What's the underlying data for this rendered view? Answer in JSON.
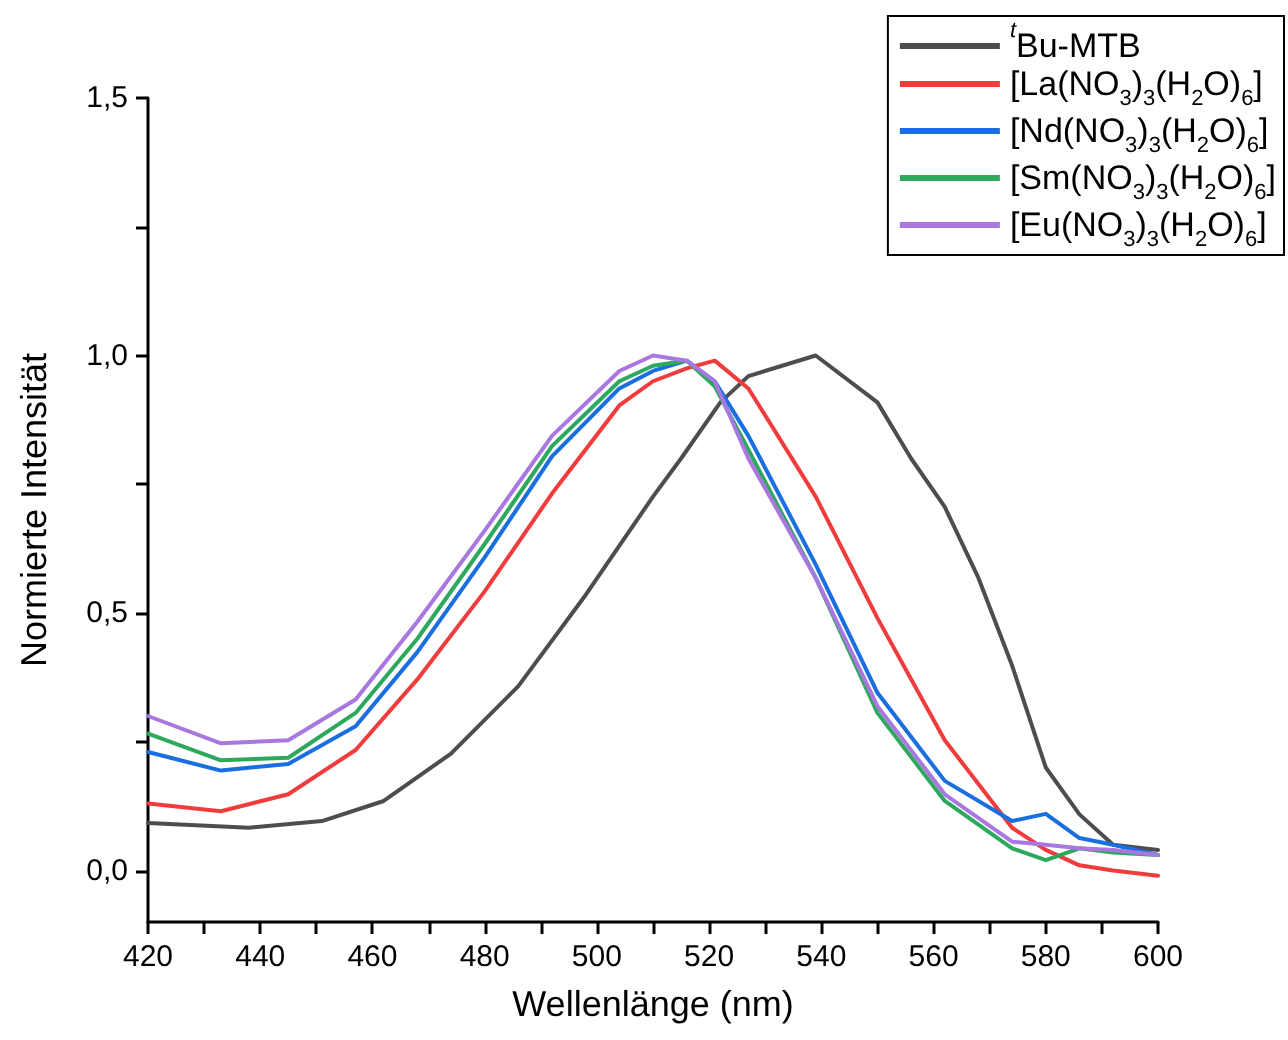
{
  "chart_data": {
    "type": "line",
    "xlabel": "Wellenlänge (nm)",
    "ylabel": "Normierte Intensität",
    "xlim": [
      420,
      600
    ],
    "ylim": [
      -0.1,
      1.5
    ],
    "xticks": [
      420,
      {
        "value": 430,
        "label": null
      },
      440,
      {
        "value": 450,
        "label": null
      },
      460,
      {
        "value": 470,
        "label": null
      },
      480,
      {
        "value": 490,
        "label": null
      },
      500,
      {
        "value": 510,
        "label": null
      },
      520,
      {
        "value": 530,
        "label": null
      },
      540,
      {
        "value": 550,
        "label": null
      },
      560,
      {
        "value": 570,
        "label": null
      },
      580,
      {
        "value": 590,
        "label": null
      },
      600
    ],
    "yticks": [
      {
        "value": 0,
        "label": "0,0"
      },
      {
        "value": 0.25,
        "label": null
      },
      {
        "value": 0.5,
        "label": "0,5"
      },
      {
        "value": 0.75,
        "label": null
      },
      {
        "value": 1,
        "label": "1,0"
      },
      {
        "value": 1.25,
        "label": null
      },
      {
        "value": 1.5,
        "label": "1,5"
      }
    ],
    "grid": false,
    "legend": "top right",
    "marker": "none",
    "line_style": "solid",
    "series": [
      {
        "name": "$^{t}$Bu-MTB",
        "color": "#4d4d4d",
        "x": [
          420,
          438,
          451,
          462,
          474,
          486,
          498,
          510,
          515,
          522,
          527,
          539,
          550,
          556,
          562,
          568,
          574,
          580,
          586,
          592,
          600
        ],
        "values": [
          0.092,
          0.083,
          0.096,
          0.135,
          0.227,
          0.358,
          0.535,
          0.726,
          0.8,
          0.909,
          0.96,
          1.0,
          0.909,
          0.8,
          0.706,
          0.568,
          0.398,
          0.2,
          0.109,
          0.05,
          0.04
        ]
      },
      {
        "name": "[La(NO$_{3}$)$_{3}$(H$_{2}$O)$_{6}$]",
        "color": "#f03c3c",
        "x": [
          420,
          433,
          445,
          457,
          468,
          480,
          492,
          504,
          510,
          516,
          521,
          527,
          539,
          550,
          562,
          574,
          580,
          586,
          592,
          600
        ],
        "values": [
          0.13,
          0.115,
          0.148,
          0.234,
          0.371,
          0.542,
          0.732,
          0.903,
          0.95,
          0.975,
          0.99,
          0.936,
          0.726,
          0.49,
          0.253,
          0.083,
          0.04,
          0.01,
          0.0,
          -0.01
        ]
      },
      {
        "name": "[Nd(NO$_{3}$)$_{3}$(H$_{2}$O)$_{6}$]",
        "color": "#1a6fe0",
        "x": [
          420,
          433,
          445,
          457,
          468,
          480,
          492,
          504,
          510,
          516,
          521,
          527,
          539,
          550,
          562,
          574,
          580,
          586,
          592,
          600
        ],
        "values": [
          0.23,
          0.194,
          0.207,
          0.28,
          0.424,
          0.608,
          0.804,
          0.936,
          0.97,
          0.99,
          0.95,
          0.844,
          0.594,
          0.345,
          0.174,
          0.096,
          0.11,
          0.063,
          0.05,
          0.03
        ]
      },
      {
        "name": "[Sm(NO$_{3}$)$_{3}$(H$_{2}$O)$_{6}$]",
        "color": "#2ea85c",
        "x": [
          420,
          433,
          445,
          457,
          468,
          480,
          492,
          504,
          510,
          516,
          521,
          527,
          539,
          550,
          562,
          574,
          580,
          586,
          592,
          600
        ],
        "values": [
          0.266,
          0.214,
          0.219,
          0.306,
          0.45,
          0.634,
          0.824,
          0.95,
          0.98,
          0.99,
          0.94,
          0.817,
          0.568,
          0.306,
          0.135,
          0.043,
          0.02,
          0.043,
          0.035,
          0.03
        ]
      },
      {
        "name": "[Eu(NO$_{3}$)$_{3}$(H$_{2}$O)$_{6}$]",
        "color": "#a878e0",
        "x": [
          420,
          433,
          445,
          457,
          468,
          480,
          492,
          504,
          510,
          516,
          521,
          527,
          539,
          550,
          562,
          574,
          580,
          586,
          592,
          600
        ],
        "values": [
          0.3,
          0.247,
          0.253,
          0.332,
          0.483,
          0.66,
          0.844,
          0.97,
          1.0,
          0.99,
          0.95,
          0.8,
          0.568,
          0.319,
          0.148,
          0.056,
          0.05,
          0.043,
          0.04,
          0.03
        ]
      }
    ]
  }
}
